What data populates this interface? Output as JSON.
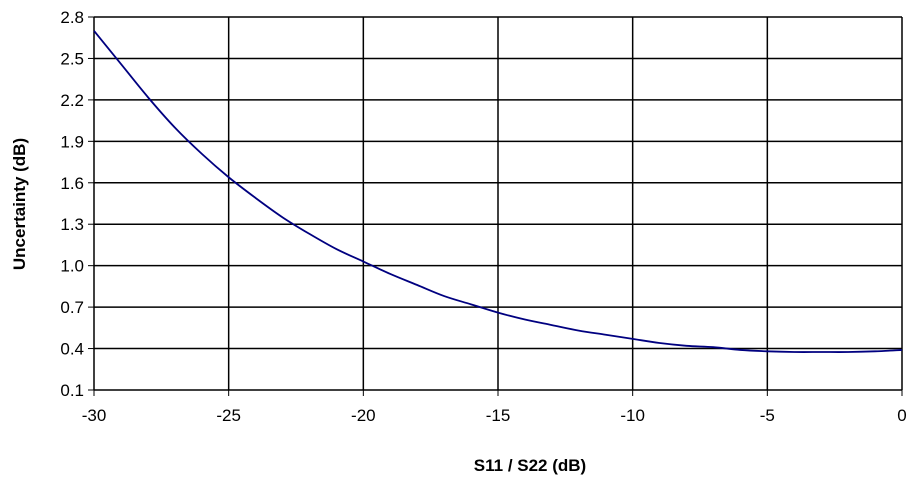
{
  "chart_data": {
    "type": "line",
    "title": "",
    "xlabel": "S11 / S22 (dB)",
    "ylabel": "Uncertainty (dB)",
    "xlim": [
      -30,
      0
    ],
    "ylim": [
      0.1,
      2.8
    ],
    "x_ticks": [
      "-30",
      "-25",
      "-20",
      "-15",
      "-10",
      "-5",
      "0"
    ],
    "x_tick_values": [
      -30,
      -25,
      -20,
      -15,
      -10,
      -5,
      0
    ],
    "y_ticks": [
      "0.1",
      "0.4",
      "0.7",
      "1.0",
      "1.3",
      "1.6",
      "1.9",
      "2.2",
      "2.5",
      "2.8"
    ],
    "y_tick_values": [
      0.1,
      0.4,
      0.7,
      1.0,
      1.3,
      1.6,
      1.9,
      2.2,
      2.5,
      2.8
    ],
    "grid": true,
    "line_color": "#000080",
    "series": [
      {
        "x": [
          -30,
          -29,
          -28,
          -27,
          -26,
          -25,
          -24,
          -23,
          -22,
          -21,
          -20,
          -19,
          -18,
          -17,
          -16,
          -15,
          -14,
          -13,
          -12,
          -11,
          -10,
          -9,
          -8,
          -7,
          -6,
          -5,
          -4,
          -3,
          -2,
          -1,
          0
        ],
        "values": [
          2.7,
          2.46,
          2.22,
          2.0,
          1.81,
          1.64,
          1.49,
          1.35,
          1.23,
          1.12,
          1.03,
          0.94,
          0.86,
          0.78,
          0.72,
          0.66,
          0.61,
          0.57,
          0.53,
          0.5,
          0.47,
          0.44,
          0.42,
          0.41,
          0.39,
          0.38,
          0.375,
          0.375,
          0.375,
          0.38,
          0.39
        ]
      }
    ]
  }
}
